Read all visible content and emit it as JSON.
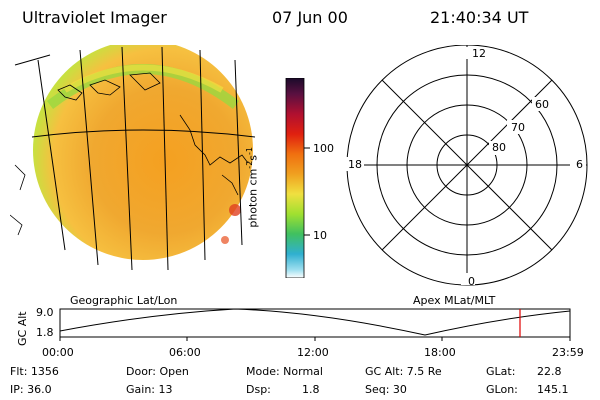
{
  "header": {
    "title": "Ultraviolet Imager",
    "date": "07 Jun 00",
    "time": "21:40:34 UT"
  },
  "colorbar": {
    "unit_prefix": "photon cm",
    "unit_exp1": "-2",
    "unit_mid": "s",
    "unit_exp2": "-1",
    "tick_100": "100",
    "tick_10": "10"
  },
  "geo_panel": {
    "label": "Geographic Lat/Lon"
  },
  "polar_panel": {
    "label": "Apex MLat/MLT",
    "mlt_top": "12",
    "mlt_bottom": "0",
    "mlt_left": "18",
    "mlt_right": "6",
    "lat_60": "60",
    "lat_70": "70",
    "lat_80": "80"
  },
  "altitude_plot": {
    "ylabel": "GC Alt",
    "ytick_top": "9.0",
    "ytick_bottom": "1.8",
    "x_ticks": [
      "00:00",
      "06:00",
      "12:00",
      "18:00",
      "23:59"
    ],
    "marker_color": "#e00000"
  },
  "footer": {
    "flt": "Flt: 1356",
    "ip": "IP: 36.0",
    "door": "Door: Open",
    "gain": "Gain: 13",
    "mode": "Mode: Normal",
    "dsp_label": "Dsp:",
    "dsp_value": "1.8",
    "gc_alt": "GC Alt: 7.5 Re",
    "seq": "Seq: 30",
    "glat_label": "GLat:",
    "glat_value": "22.8",
    "glon_label": "GLon:",
    "glon_value": "145.1"
  }
}
